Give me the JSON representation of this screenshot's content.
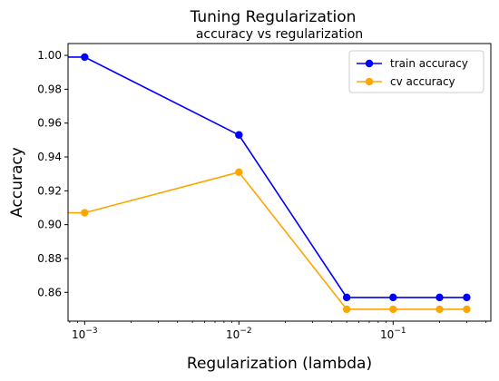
{
  "chart_data": {
    "type": "line",
    "title": "Tuning Regularization",
    "subtitle": "accuracy vs regularization",
    "xlabel": "Regularization (lambda)",
    "ylabel": "Accuracy",
    "xscale": "log",
    "xlim": [
      0.00078,
      0.43
    ],
    "ylim": [
      0.843,
      1.007
    ],
    "x": [
      0.001,
      0.01,
      0.05,
      0.1,
      0.2,
      0.3
    ],
    "x_ticks": [
      {
        "value": 0.001,
        "base": "10",
        "exp": "−3"
      },
      {
        "value": 0.01,
        "base": "10",
        "exp": "−2"
      },
      {
        "value": 0.1,
        "base": "10",
        "exp": "−1"
      }
    ],
    "y_ticks": [
      "0.86",
      "0.88",
      "0.90",
      "0.92",
      "0.94",
      "0.96",
      "0.98",
      "1.00"
    ],
    "legend_position": "top-right",
    "grid": false,
    "series": [
      {
        "name": "train accuracy",
        "color": "#0000ff",
        "values": [
          0.999,
          0.953,
          0.857,
          0.857,
          0.857,
          0.857
        ],
        "leading_y": 0.999
      },
      {
        "name": "cv accuracy",
        "color": "#ffa500",
        "values": [
          0.907,
          0.931,
          0.85,
          0.85,
          0.85,
          0.85
        ],
        "leading_y": 0.907
      }
    ]
  }
}
